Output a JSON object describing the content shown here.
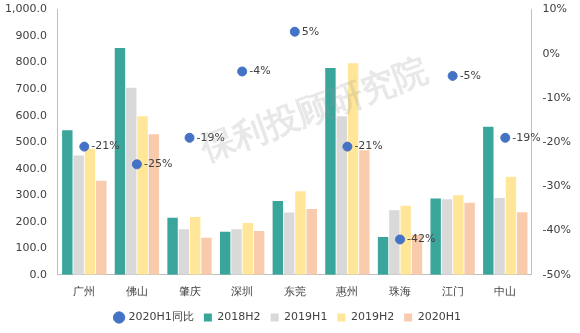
{
  "chart_data": {
    "type": "bar",
    "categories": [
      "广州",
      "佛山",
      "肇庆",
      "深圳",
      "东莞",
      "惠州",
      "珠海",
      "江门",
      "中山"
    ],
    "series": [
      {
        "name": "2018H2",
        "color": "#3aa59b",
        "values": [
          545,
          855,
          215,
          162,
          278,
          780,
          143,
          288,
          558
        ]
      },
      {
        "name": "2019H1",
        "color": "#d9d9d9",
        "values": [
          450,
          705,
          172,
          172,
          235,
          598,
          243,
          285,
          290
        ]
      },
      {
        "name": "2019H2",
        "color": "#ffe699",
        "values": [
          475,
          598,
          218,
          195,
          315,
          798,
          260,
          300,
          370
        ]
      },
      {
        "name": "2020H1",
        "color": "#f8cbad",
        "values": [
          355,
          530,
          140,
          165,
          248,
          470,
          150,
          272,
          236
        ]
      },
      {
        "name": "2020H1同比",
        "type": "scatter",
        "marker": "circle",
        "color": "#4472c4",
        "axis": "y2",
        "values": [
          -21,
          -25,
          -19,
          -4,
          5,
          -21,
          -42,
          -5,
          -19
        ],
        "value_labels": [
          "-21%",
          "-25%",
          "-19%",
          "-4%",
          "5%",
          "-21%",
          "-42%",
          "-5%",
          "-19%"
        ],
        "data_labels": true
      }
    ],
    "ylim": [
      0,
      1000
    ],
    "yticks": [
      {
        "value": 0,
        "label": "0.0"
      },
      {
        "value": 100,
        "label": "100.0"
      },
      {
        "value": 200,
        "label": "200.0"
      },
      {
        "value": 300,
        "label": "300.0"
      },
      {
        "value": 400,
        "label": "400.0"
      },
      {
        "value": 500,
        "label": "500.0"
      },
      {
        "value": 600,
        "label": "600.0"
      },
      {
        "value": 700,
        "label": "700.0"
      },
      {
        "value": 800,
        "label": "800.0"
      },
      {
        "value": 900,
        "label": "900.0"
      },
      {
        "value": 1000,
        "label": "1,000.0"
      }
    ],
    "y2lim": [
      -50,
      10
    ],
    "y2ticks": [
      {
        "value": -50,
        "label": "-50%"
      },
      {
        "value": -40,
        "label": "-40%"
      },
      {
        "value": -30,
        "label": "-30%"
      },
      {
        "value": -20,
        "label": "-20%"
      },
      {
        "value": -10,
        "label": "-10%"
      },
      {
        "value": 0,
        "label": "0%"
      },
      {
        "value": 10,
        "label": "10%"
      }
    ],
    "grid": false,
    "legend": "bottom",
    "watermark": "保利投顾研究院"
  }
}
